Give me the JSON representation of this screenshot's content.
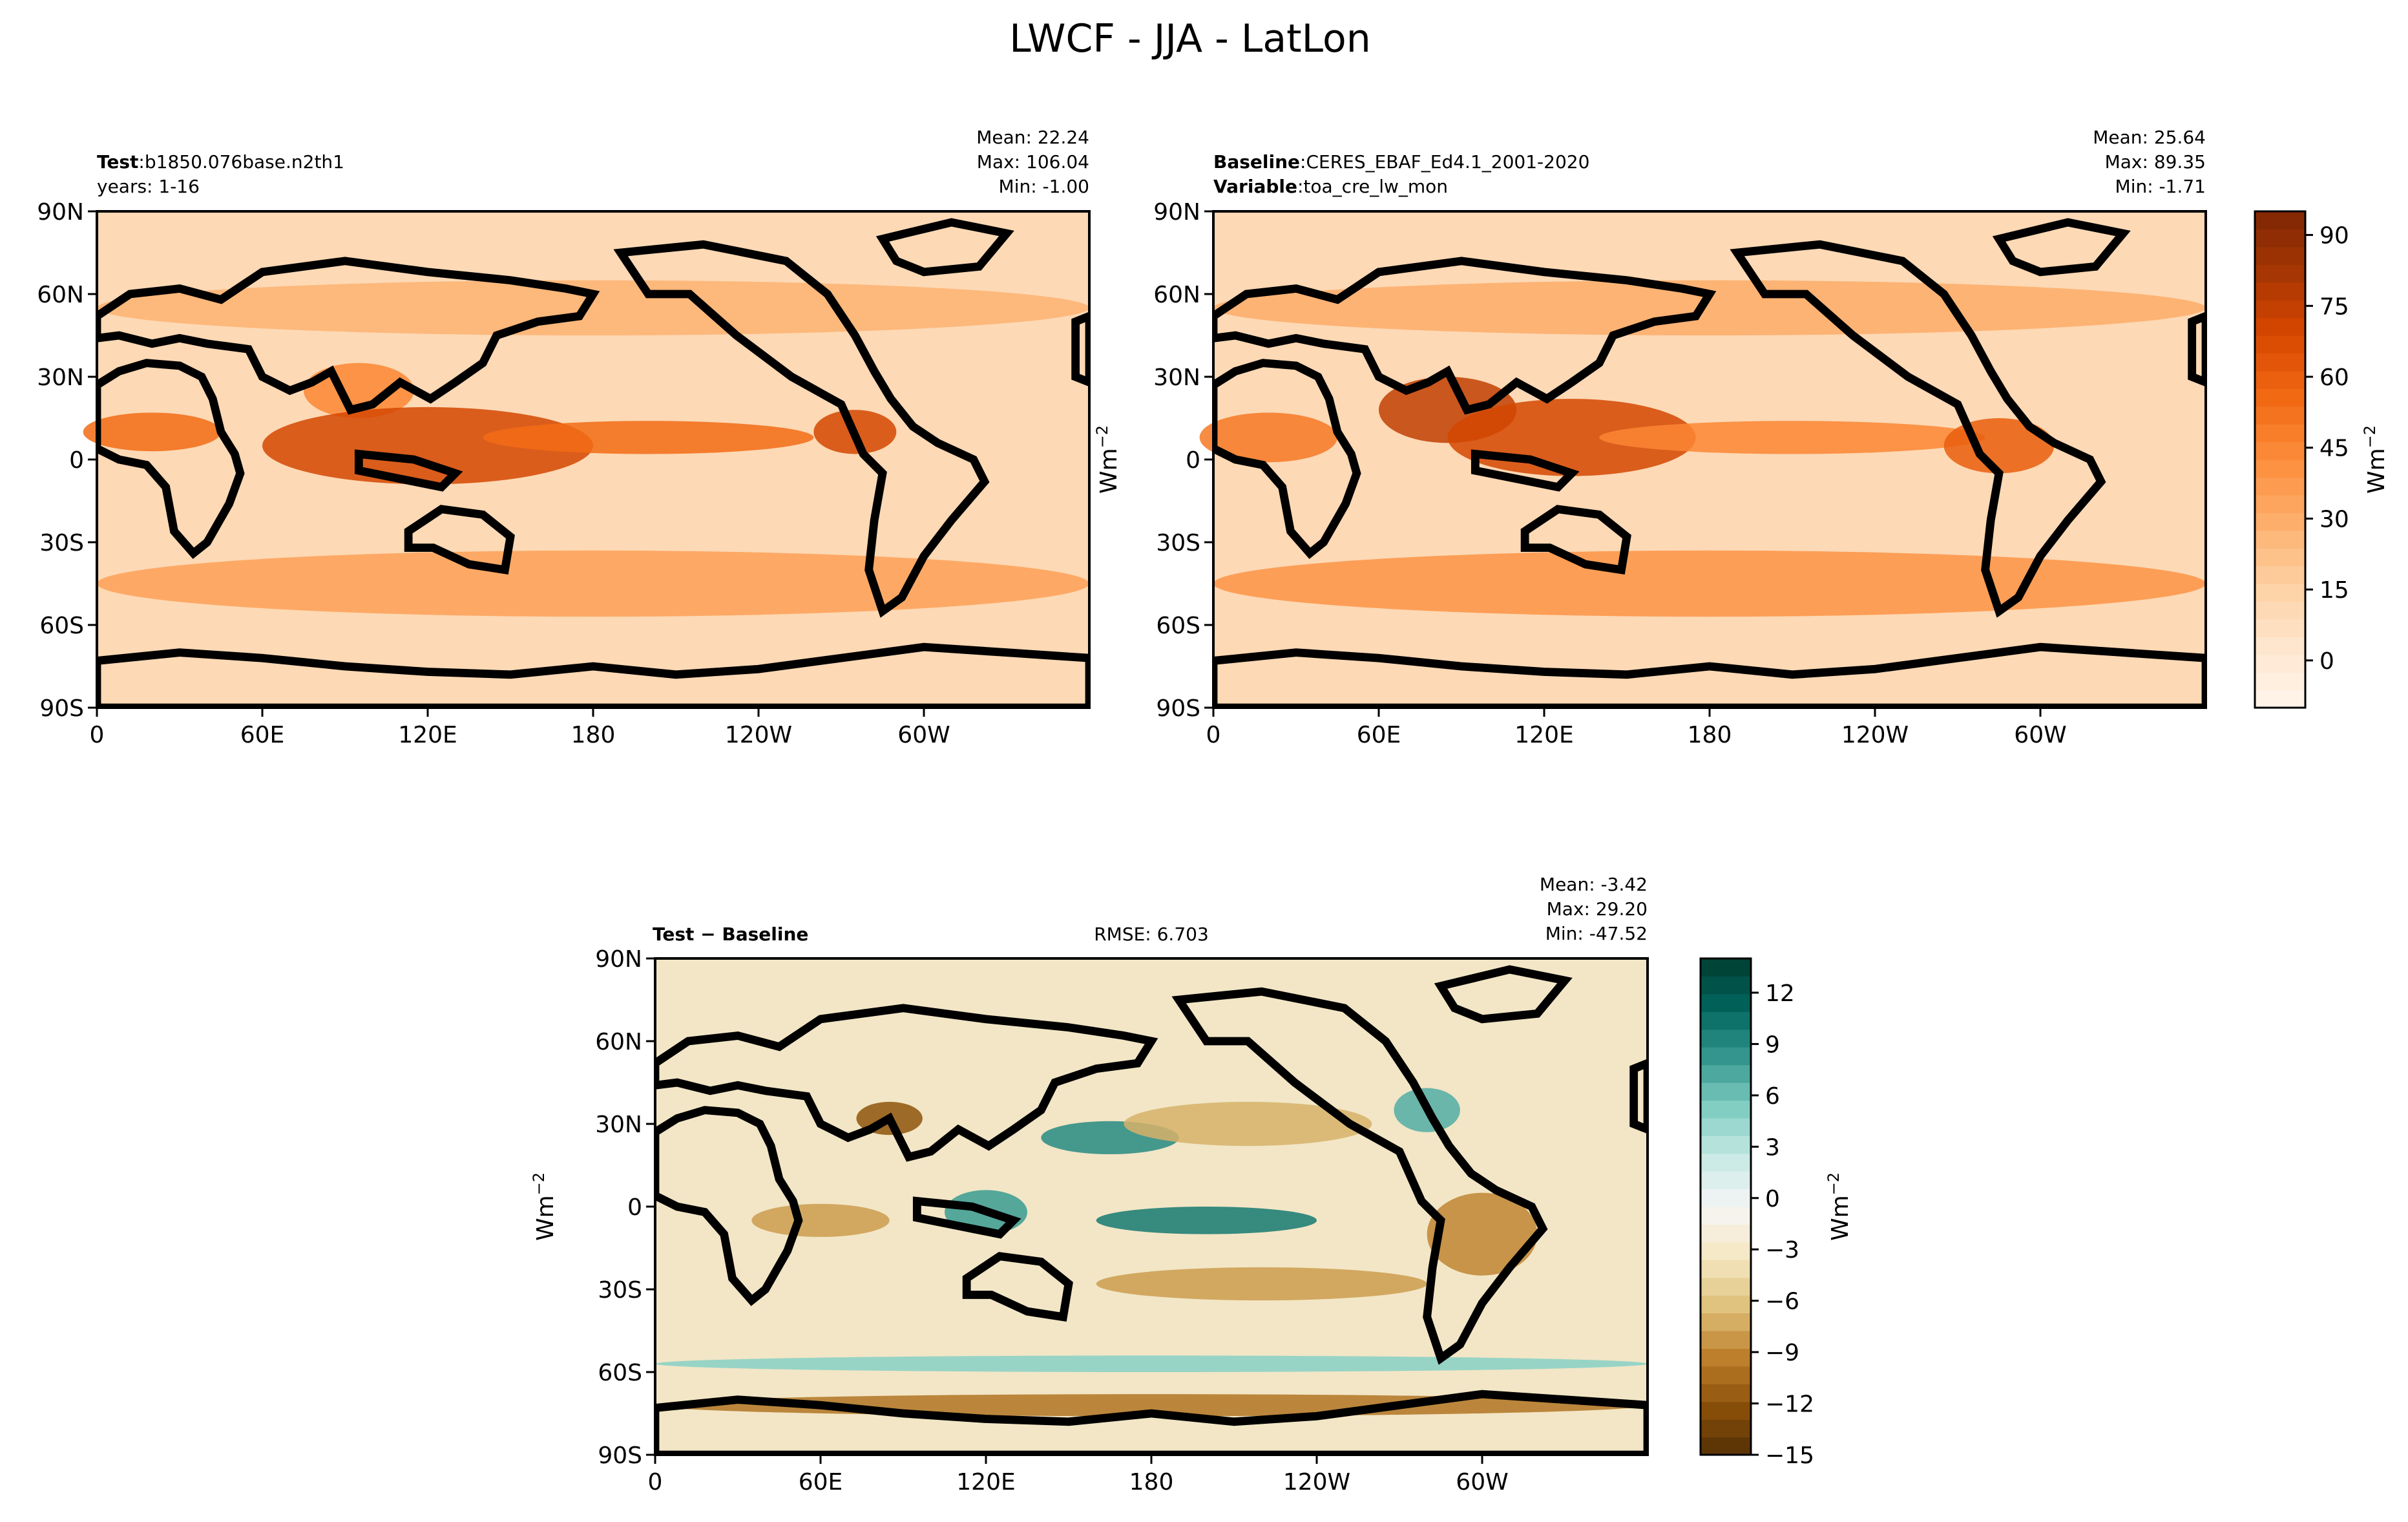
{
  "title": "LWCF - JJA - LatLon",
  "chart_data": [
    {
      "type": "heatmap",
      "panel": "test",
      "label_bold": "Test",
      "label_text": "b1850.076base.n2th1",
      "label2": "years: 1-16",
      "stats": {
        "mean": "Mean: 22.24",
        "max": "Max: 106.04",
        "min": "Min: -1.00"
      },
      "xticks": [
        "0",
        "60E",
        "120E",
        "180",
        "120W",
        "60W"
      ],
      "yticks": [
        "90N",
        "60N",
        "30N",
        "0",
        "30S",
        "60S",
        "90S"
      ],
      "xlim": [
        0,
        360
      ],
      "ylim": [
        -90,
        90
      ],
      "features": [
        {
          "lon": 20,
          "lat": 10,
          "value": 55,
          "w": 25,
          "h": 7
        },
        {
          "lon": 95,
          "lat": 25,
          "value": 45,
          "w": 20,
          "h": 10
        },
        {
          "lon": 120,
          "lat": 5,
          "value": 70,
          "w": 60,
          "h": 14
        },
        {
          "lon": 200,
          "lat": 8,
          "value": 55,
          "w": 60,
          "h": 6
        },
        {
          "lon": 275,
          "lat": 10,
          "value": 70,
          "w": 15,
          "h": 8
        },
        {
          "lon": 180,
          "lat": -45,
          "value": 35,
          "w": 180,
          "h": 12
        },
        {
          "lon": 180,
          "lat": 55,
          "value": 28,
          "w": 180,
          "h": 10
        }
      ]
    },
    {
      "type": "heatmap",
      "panel": "baseline",
      "label_bold": "Baseline",
      "label_text": "CERES_EBAF_Ed4.1_2001-2020",
      "label2_bold": "Variable",
      "label2_text": "toa_cre_lw_mon",
      "stats": {
        "mean": "Mean: 25.64",
        "max": "Max: 89.35",
        "min": "Min: -1.71"
      },
      "xticks": [
        "0",
        "60E",
        "120E",
        "180",
        "120W",
        "60W"
      ],
      "yticks": [
        "90N",
        "60N",
        "30N",
        "0",
        "30S",
        "60S",
        "90S"
      ],
      "xlim": [
        0,
        360
      ],
      "ylim": [
        -90,
        90
      ],
      "features": [
        {
          "lon": 20,
          "lat": 8,
          "value": 50,
          "w": 25,
          "h": 9
        },
        {
          "lon": 85,
          "lat": 18,
          "value": 75,
          "w": 25,
          "h": 12
        },
        {
          "lon": 130,
          "lat": 8,
          "value": 70,
          "w": 45,
          "h": 14
        },
        {
          "lon": 210,
          "lat": 8,
          "value": 45,
          "w": 70,
          "h": 6
        },
        {
          "lon": 285,
          "lat": 5,
          "value": 60,
          "w": 20,
          "h": 10
        },
        {
          "lon": 180,
          "lat": -45,
          "value": 40,
          "w": 180,
          "h": 12
        },
        {
          "lon": 180,
          "lat": 55,
          "value": 30,
          "w": 180,
          "h": 10
        }
      ],
      "colorbar": {
        "ticks": [
          "0",
          "15",
          "30",
          "45",
          "60",
          "75",
          "90"
        ],
        "ylabel": "Wm",
        "ylabel_sup": "−2",
        "range": [
          -10,
          95
        ],
        "colors": [
          "#fff5eb",
          "#fee6ce",
          "#fdd0a2",
          "#fdae6b",
          "#fd8d3c",
          "#f16913",
          "#d94801",
          "#a63603",
          "#7f2704"
        ]
      }
    },
    {
      "type": "heatmap",
      "panel": "difference",
      "label_bold": "Test − Baseline",
      "rmse": "RMSE: 6.703",
      "stats": {
        "mean": "Mean: -3.42",
        "max": "Max: 29.20",
        "min": "Min: -47.52"
      },
      "xticks": [
        "0",
        "60E",
        "120E",
        "180",
        "120W",
        "60W"
      ],
      "yticks": [
        "90N",
        "60N",
        "30N",
        "0",
        "30S",
        "60S",
        "90S"
      ],
      "ylabel": "Wm",
      "ylabel_sup": "−2",
      "xlim": [
        0,
        360
      ],
      "ylim": [
        -90,
        90
      ],
      "features": [
        {
          "lon": 165,
          "lat": 25,
          "value": 9,
          "w": 25,
          "h": 6
        },
        {
          "lon": 200,
          "lat": -5,
          "value": 10,
          "w": 40,
          "h": 5
        },
        {
          "lon": 120,
          "lat": -2,
          "value": 8,
          "w": 15,
          "h": 8
        },
        {
          "lon": 215,
          "lat": 30,
          "value": -7,
          "w": 45,
          "h": 8
        },
        {
          "lon": 220,
          "lat": -28,
          "value": -8,
          "w": 60,
          "h": 6
        },
        {
          "lon": 60,
          "lat": -5,
          "value": -8,
          "w": 25,
          "h": 6
        },
        {
          "lon": 180,
          "lat": -72,
          "value": -10,
          "w": 180,
          "h": 4
        },
        {
          "lon": 300,
          "lat": -10,
          "value": -9,
          "w": 20,
          "h": 15
        },
        {
          "lon": 180,
          "lat": -57,
          "value": 5,
          "w": 180,
          "h": 3
        },
        {
          "lon": 85,
          "lat": 32,
          "value": -12,
          "w": 12,
          "h": 6
        },
        {
          "lon": 280,
          "lat": 35,
          "value": 7,
          "w": 12,
          "h": 8
        }
      ],
      "colorbar": {
        "ticks": [
          "12",
          "9",
          "6",
          "3",
          "0",
          "−3",
          "−6",
          "−9",
          "−12",
          "−15"
        ],
        "ylabel": "Wm",
        "ylabel_sup": "−2",
        "range": [
          -15,
          14
        ],
        "colors": [
          "#543005",
          "#8c510a",
          "#bf812d",
          "#dfc27d",
          "#f6e8c3",
          "#f5f5f5",
          "#c7eae5",
          "#80cdc1",
          "#35978f",
          "#01665e",
          "#003c30"
        ]
      }
    }
  ]
}
